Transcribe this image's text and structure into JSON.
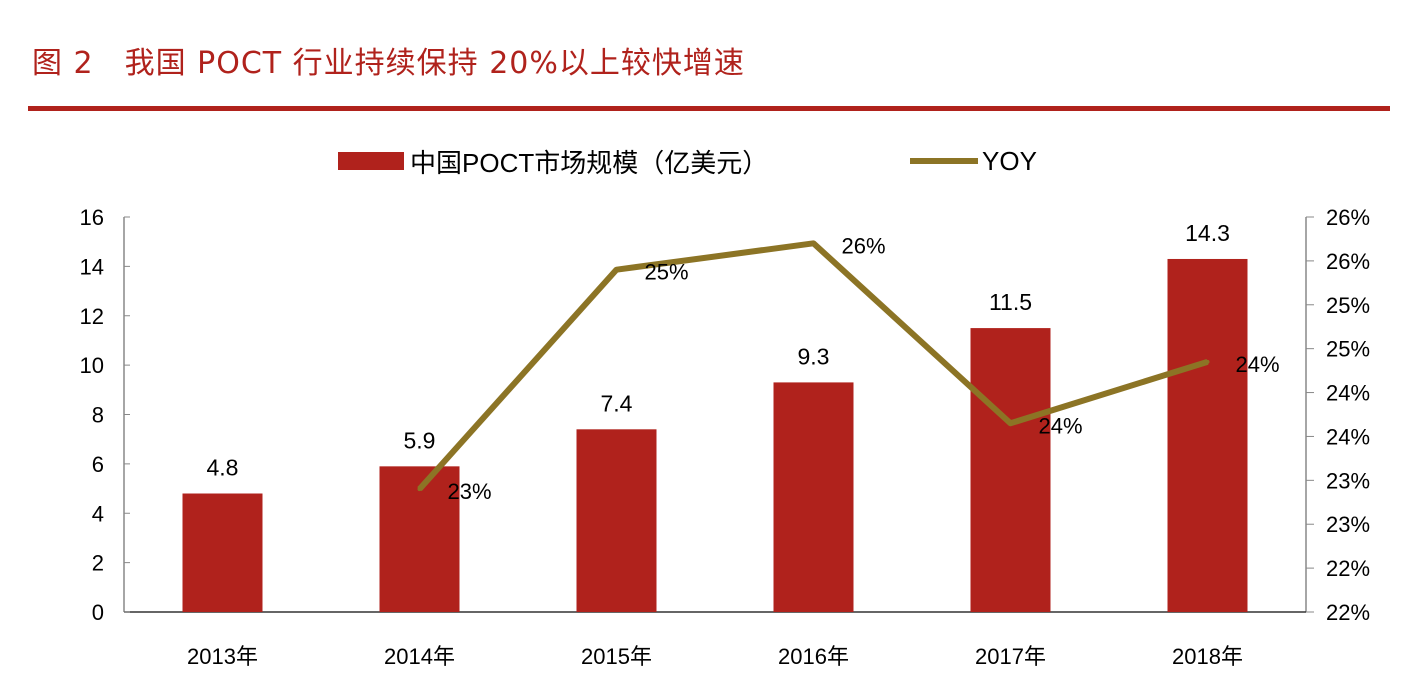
{
  "header": {
    "title": "图 2　我国 POCT 行业持续保持 20%以上较快增速"
  },
  "chart_data": {
    "type": "bar+line",
    "categories": [
      "2013年",
      "2014年",
      "2015年",
      "2016年",
      "2017年",
      "2018年"
    ],
    "series": [
      {
        "name": "中国POCT市场规模（亿美元）",
        "type": "bar",
        "axis": "left",
        "color": "#b0221c",
        "values": [
          4.8,
          5.9,
          7.4,
          9.3,
          11.5,
          14.3
        ],
        "labels": [
          "4.8",
          "5.9",
          "7.4",
          "9.3",
          "11.5",
          "14.3"
        ]
      },
      {
        "name": "YOY",
        "type": "line",
        "axis": "right",
        "color": "#8c7425",
        "values": [
          null,
          22.9,
          25.4,
          25.7,
          23.65,
          24.35
        ],
        "labels": [
          null,
          "23%",
          "25%",
          "26%",
          "24%",
          "24%"
        ]
      }
    ],
    "left_axis": {
      "ylim": [
        0,
        16
      ],
      "ticks": [
        "0",
        "2",
        "4",
        "6",
        "8",
        "10",
        "12",
        "14",
        "16"
      ]
    },
    "right_axis": {
      "ylim": [
        21.5,
        26
      ],
      "ticks": [
        "22%",
        "22%",
        "23%",
        "23%",
        "24%",
        "24%",
        "25%",
        "25%",
        "26%",
        "26%"
      ]
    },
    "legend": "top",
    "grid": false
  }
}
